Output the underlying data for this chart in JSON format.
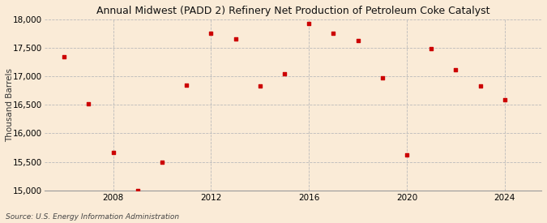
{
  "title": "Annual Midwest (PADD 2) Refinery Net Production of Petroleum Coke Catalyst",
  "ylabel": "Thousand Barrels",
  "source": "Source: U.S. Energy Information Administration",
  "background_color": "#faebd7",
  "plot_background_color": "#faebd7",
  "marker_color": "#cc0000",
  "grid_color": "#bbbbbb",
  "years": [
    2006,
    2007,
    2008,
    2009,
    2010,
    2011,
    2012,
    2013,
    2014,
    2015,
    2016,
    2017,
    2018,
    2019,
    2020,
    2021,
    2022,
    2023,
    2024
  ],
  "values": [
    17350,
    16520,
    15660,
    15000,
    15500,
    16850,
    17750,
    17650,
    16830,
    17040,
    17930,
    17760,
    17630,
    16970,
    15620,
    17480,
    17120,
    16830,
    16590
  ],
  "ylim": [
    15000,
    18000
  ],
  "yticks": [
    15000,
    15500,
    16000,
    16500,
    17000,
    17500,
    18000
  ],
  "xticks": [
    2008,
    2012,
    2016,
    2020,
    2024
  ],
  "xlim": [
    2005.2,
    2025.5
  ]
}
